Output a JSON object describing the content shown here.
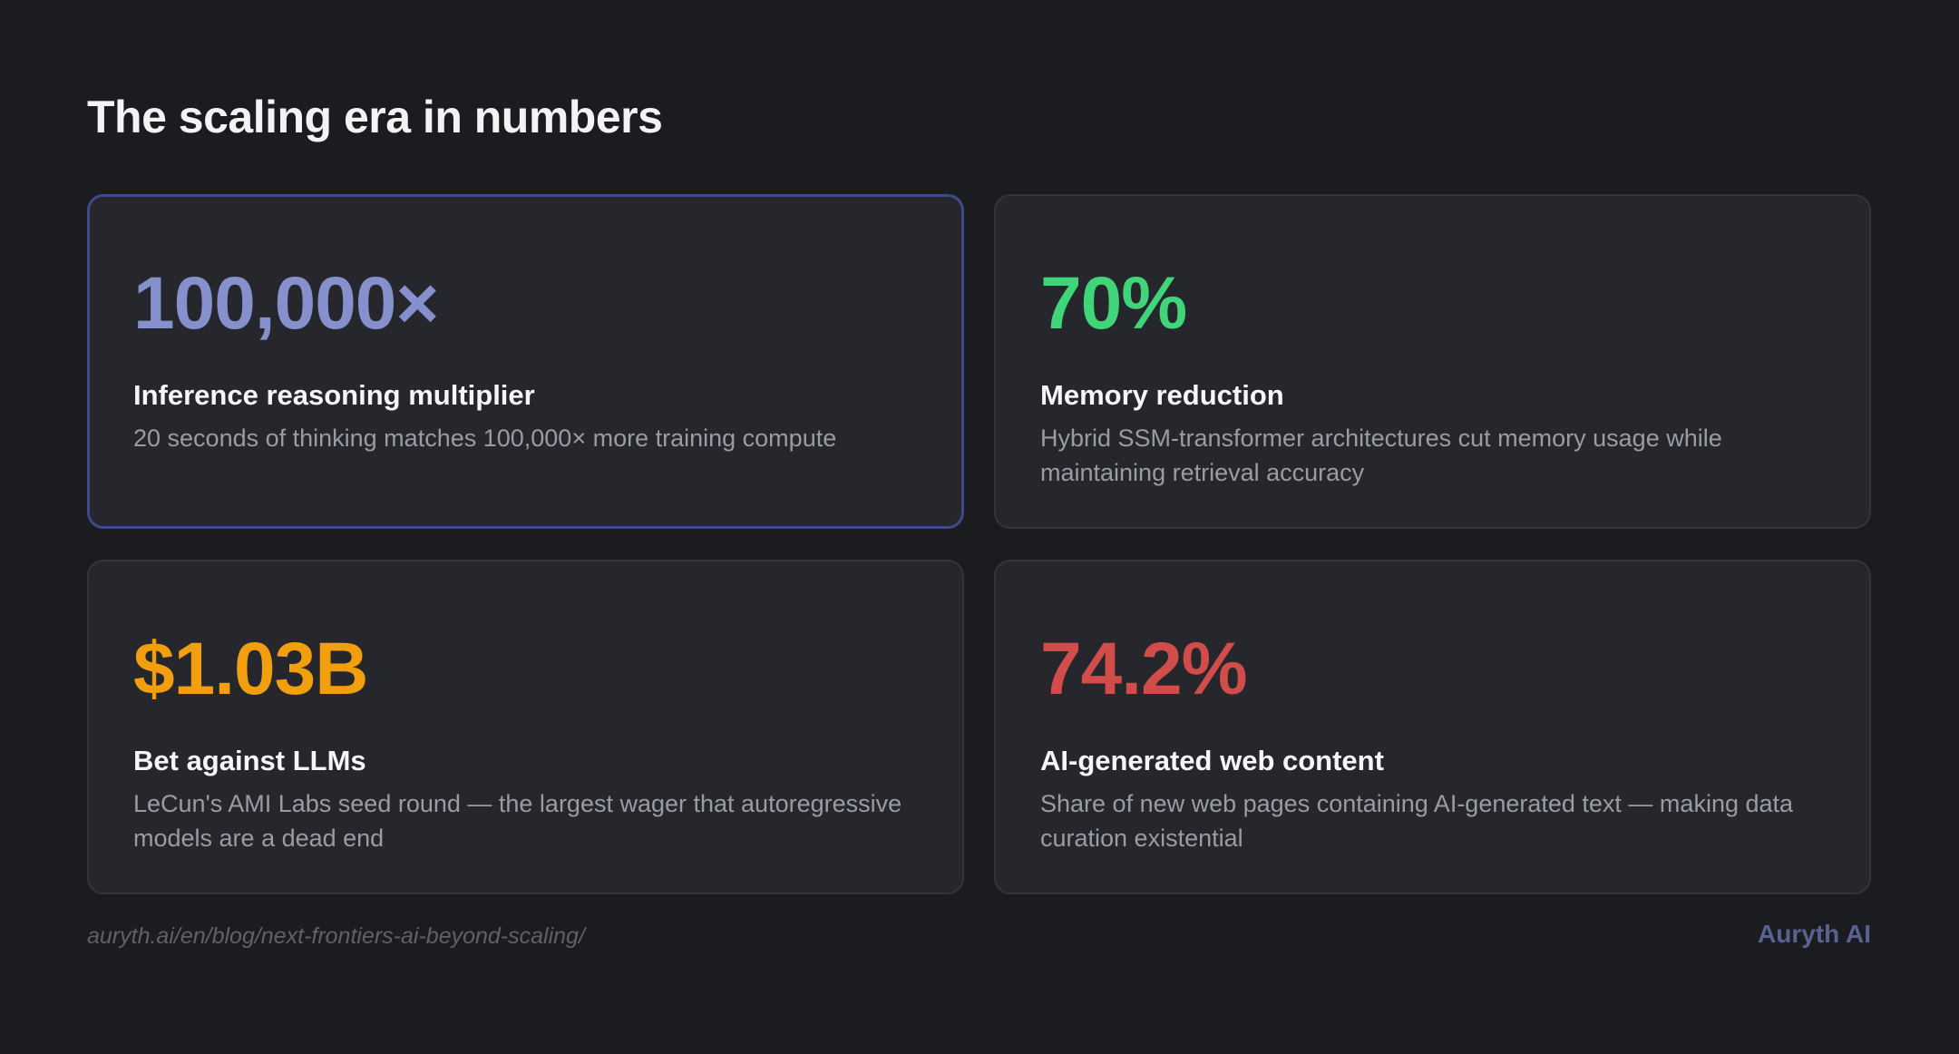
{
  "page": {
    "title": "The scaling era in numbers"
  },
  "stats": [
    {
      "value": "100,000×",
      "label": "Inference reasoning multiplier",
      "description": "20 seconds of thinking matches 100,000× more training compute",
      "color": "#8690cc",
      "highlighted": true
    },
    {
      "value": "70%",
      "label": "Memory reduction",
      "description": "Hybrid SSM-transformer architectures cut memory usage while maintaining retrieval accuracy",
      "color": "#41d57a",
      "highlighted": false
    },
    {
      "value": "$1.03B",
      "label": "Bet against LLMs",
      "description": "LeCun's AMI Labs seed round — the largest wager that autoregressive models are a dead end",
      "color": "#f19e0f",
      "highlighted": false
    },
    {
      "value": "74.2%",
      "label": "AI-generated web content",
      "description": "Share of new web pages containing AI-generated text — making data curation existential",
      "color": "#d24c4a",
      "highlighted": false
    }
  ],
  "footer": {
    "url": "auryth.ai/en/blog/next-frontiers-ai-beyond-scaling/",
    "brand": "Auryth AI"
  },
  "colors": {
    "background": "#1b1c20",
    "card_background": "#25272d",
    "card_border": "#33353c",
    "highlight_border": "#3d4a8c",
    "title_text": "#f3f3f6",
    "description_text": "#9a9ca4",
    "footer_url_text": "#5f6169",
    "brand_text": "#5a6390"
  }
}
